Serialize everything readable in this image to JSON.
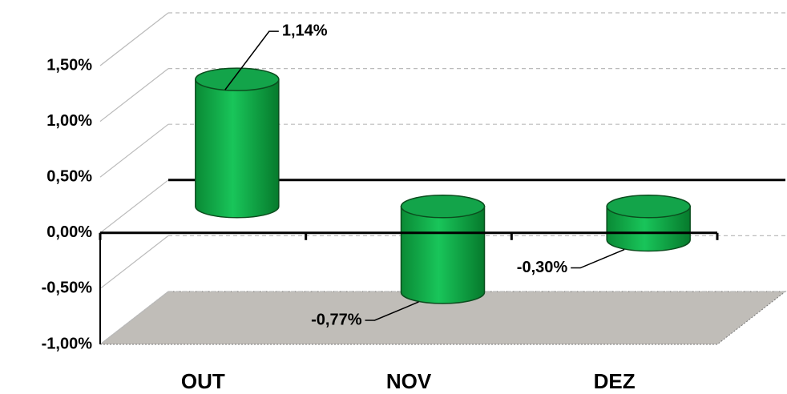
{
  "chart_data": {
    "type": "bar",
    "categories": [
      "OUT",
      "NOV",
      "DEZ"
    ],
    "values": [
      1.14,
      -0.77,
      -0.3
    ],
    "value_labels": [
      "1,14%",
      "-0,77%",
      "-0,30%"
    ],
    "color": "#00b050",
    "ylim": [
      -1,
      1.5
    ],
    "yticks": [
      {
        "value": -1,
        "label": "-1,00%"
      },
      {
        "value": -0.5,
        "label": "-0,50%"
      },
      {
        "value": 0,
        "label": "0,00%"
      },
      {
        "value": 0.5,
        "label": "0,50%"
      },
      {
        "value": 1,
        "label": "1,00%"
      },
      {
        "value": 1.5,
        "label": "1,50%"
      }
    ],
    "grid": true
  }
}
